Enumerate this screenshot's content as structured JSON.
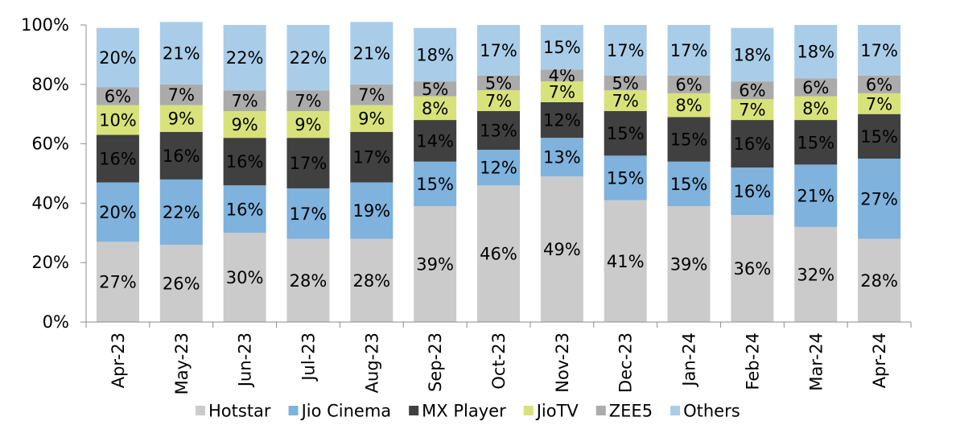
{
  "chart_data": {
    "type": "bar",
    "stacked": true,
    "percent_scale": true,
    "categories": [
      "Apr-23",
      "May-23",
      "Jun-23",
      "Jul-23",
      "Aug-23",
      "Sep-23",
      "Oct-23",
      "Nov-23",
      "Dec-23",
      "Jan-24",
      "Feb-24",
      "Mar-24",
      "Apr-24"
    ],
    "series": [
      {
        "name": "Hotstar",
        "color": "#cbcbcb",
        "values": [
          27,
          26,
          30,
          28,
          28,
          39,
          46,
          49,
          41,
          39,
          36,
          32,
          28
        ]
      },
      {
        "name": "Jio Cinema",
        "color": "#7fb2dc",
        "values": [
          20,
          22,
          16,
          17,
          19,
          15,
          12,
          13,
          15,
          15,
          16,
          21,
          27
        ]
      },
      {
        "name": "MX Player",
        "color": "#404040",
        "values": [
          16,
          16,
          16,
          17,
          17,
          14,
          13,
          12,
          15,
          15,
          16,
          15,
          15
        ]
      },
      {
        "name": "JioTV",
        "color": "#d8e27a",
        "values": [
          10,
          9,
          9,
          9,
          9,
          8,
          7,
          7,
          7,
          8,
          7,
          8,
          7
        ]
      },
      {
        "name": "ZEE5",
        "color": "#ababab",
        "values": [
          6,
          7,
          7,
          7,
          7,
          5,
          5,
          4,
          5,
          6,
          6,
          6,
          6
        ]
      },
      {
        "name": "Others",
        "color": "#a9cde8",
        "values": [
          20,
          21,
          22,
          22,
          21,
          18,
          17,
          15,
          17,
          17,
          18,
          18,
          17
        ]
      }
    ],
    "y_ticks": [
      "0%",
      "20%",
      "40%",
      "60%",
      "80%",
      "100%"
    ],
    "ylim": [
      0,
      100
    ],
    "label_suffix": "%",
    "grid": false,
    "legend_position": "bottom"
  }
}
